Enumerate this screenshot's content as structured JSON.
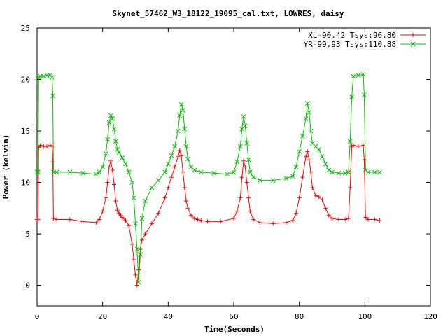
{
  "chart_data": {
    "type": "line",
    "title": "Skynet_57462_W3_18122_19095_cal.txt, LOWRES, daisy",
    "xlabel": "Time(Seconds)",
    "ylabel": "Power (kelvin)",
    "xlim": [
      0,
      120
    ],
    "ylim": [
      -2,
      25
    ],
    "xticks": [
      0,
      20,
      40,
      60,
      80,
      100,
      120
    ],
    "yticks": [
      0,
      5,
      10,
      15,
      20,
      25
    ],
    "grid": false,
    "legend_position": "top-right",
    "series": [
      {
        "name": "XL-90.42 Tsys:96.80",
        "color": "#ff0000",
        "marker": "plus",
        "x": [
          0,
          0.3,
          0.5,
          1,
          2,
          3,
          4,
          4.6,
          4.8,
          5,
          6,
          10,
          14,
          18,
          19,
          20,
          21,
          21.5,
          22,
          22.5,
          23,
          23.5,
          24,
          24.5,
          25,
          25.5,
          26,
          27,
          28,
          29,
          29.5,
          30,
          30.5,
          31,
          31.5,
          32,
          33,
          35,
          37,
          39,
          40,
          41,
          42,
          43,
          43.5,
          44,
          44.5,
          45,
          45.5,
          46,
          47,
          48,
          49,
          50,
          52,
          56,
          60,
          61,
          62,
          62.5,
          63,
          63.5,
          64,
          64.5,
          65,
          66,
          68,
          72,
          76,
          78,
          79,
          80,
          81,
          82,
          82.5,
          83,
          83.5,
          84,
          85,
          86,
          87,
          88,
          89,
          90,
          92,
          94,
          95,
          95.5,
          96,
          96.5,
          98,
          99.5,
          99.8,
          100.2,
          101,
          103,
          104.5
        ],
        "y": [
          6.4,
          6.4,
          13.4,
          13.6,
          13.5,
          13.5,
          13.6,
          13.5,
          12,
          6.5,
          6.4,
          6.4,
          6.2,
          6.1,
          6.4,
          7.2,
          8.5,
          10,
          11.5,
          12.1,
          11.2,
          9.8,
          8.2,
          7.3,
          7,
          6.8,
          6.6,
          6.3,
          5.8,
          4,
          2.5,
          1,
          0,
          1.5,
          3.5,
          4.4,
          5,
          6,
          7,
          8.5,
          9.5,
          10.5,
          11.5,
          12.5,
          13.1,
          12.6,
          11,
          9.5,
          8.2,
          7.5,
          6.8,
          6.5,
          6.4,
          6.3,
          6.2,
          6.2,
          6.5,
          7.2,
          8.5,
          10.5,
          12.1,
          11.5,
          10,
          8.5,
          7.2,
          6.4,
          6.1,
          6,
          6.1,
          6.3,
          7,
          8.5,
          10.5,
          12.5,
          13,
          12.2,
          11,
          9.5,
          8.7,
          8.6,
          8.3,
          7.5,
          6.8,
          6.5,
          6.4,
          6.4,
          6.5,
          9.5,
          13.5,
          13.6,
          13.5,
          13.6,
          12.2,
          6.6,
          6.4,
          6.4,
          6.3
        ]
      },
      {
        "name": "YR-99.93 Tsys:110.88",
        "color": "#00c000",
        "marker": "cross",
        "x": [
          0,
          0.3,
          0.5,
          1,
          2,
          3,
          4,
          4.6,
          4.8,
          5,
          6,
          10,
          14,
          18,
          19,
          20,
          21,
          21.5,
          22,
          22.5,
          23,
          23.5,
          24,
          24.5,
          25,
          26,
          27,
          28,
          29,
          29.5,
          30,
          30.5,
          31,
          31.5,
          32,
          33,
          35,
          37,
          39,
          40,
          41,
          42,
          43,
          43.5,
          44,
          44.5,
          45,
          45.5,
          46,
          47,
          48,
          50,
          54,
          58,
          60,
          61,
          62,
          62.5,
          63,
          63.5,
          64,
          64.5,
          65,
          66,
          68,
          72,
          76,
          78,
          79,
          80,
          81,
          82,
          82.5,
          83,
          83.5,
          84,
          85,
          86,
          87,
          88,
          89,
          90,
          92,
          94,
          95,
          95.5,
          96,
          96.5,
          98,
          99.5,
          99.8,
          100.2,
          101,
          103,
          104.5
        ],
        "y": [
          11,
          11,
          20.2,
          20.3,
          20.3,
          20.4,
          20.4,
          20.2,
          18.4,
          11,
          11,
          11,
          10.9,
          10.8,
          11,
          11.5,
          12.8,
          14.2,
          15.8,
          16.5,
          16.2,
          15.2,
          14,
          13.2,
          12.9,
          12.4,
          11.8,
          11,
          10,
          8.5,
          6,
          3.5,
          0.3,
          3,
          6.5,
          8.2,
          9.5,
          10.2,
          11,
          11.8,
          12.6,
          13.5,
          15,
          16.5,
          17.6,
          17,
          15.2,
          13.5,
          12.3,
          11.5,
          11.2,
          11,
          10.9,
          10.8,
          11,
          12,
          13.5,
          15.2,
          16.4,
          15.5,
          13.8,
          12.2,
          11,
          10.5,
          10.2,
          10.2,
          10.4,
          10.6,
          11.5,
          13,
          14.5,
          16.2,
          17.7,
          16.8,
          15,
          13.8,
          13.5,
          13.2,
          12.5,
          11.8,
          11.2,
          11,
          10.9,
          10.9,
          11,
          14,
          18.3,
          20.3,
          20.4,
          20.5,
          18.5,
          11.2,
          11,
          11,
          11
        ]
      }
    ]
  }
}
